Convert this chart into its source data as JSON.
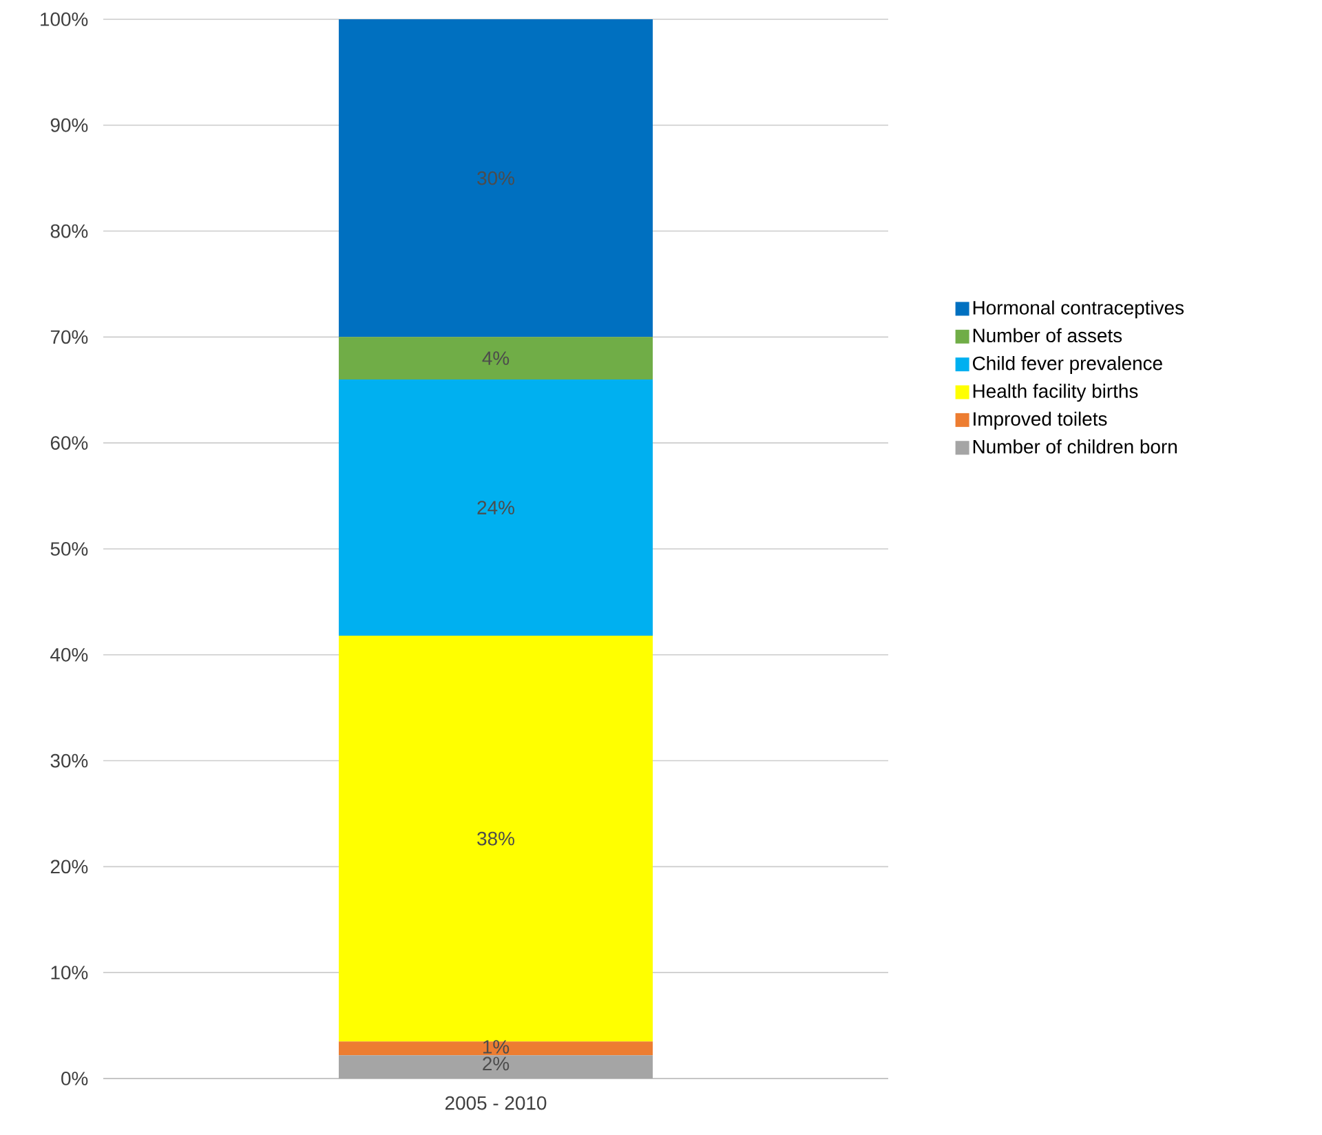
{
  "chart_data": {
    "type": "bar",
    "stacked": true,
    "categories": [
      "2005 - 2010"
    ],
    "series": [
      {
        "name": "Number of children born",
        "color": "#a5a5a5",
        "values": [
          2.2
        ],
        "value_labels": [
          "2%"
        ]
      },
      {
        "name": "Improved toilets",
        "color": "#ed7d31",
        "values": [
          1.3
        ],
        "value_labels": [
          "1%"
        ]
      },
      {
        "name": "Health facility births",
        "color": "#ffff00",
        "values": [
          38.3
        ],
        "value_labels": [
          "38%"
        ]
      },
      {
        "name": "Child fever prevalence",
        "color": "#00b0f0",
        "values": [
          24.2
        ],
        "value_labels": [
          "24%"
        ]
      },
      {
        "name": "Number of assets",
        "color": "#70ad47",
        "values": [
          4.0
        ],
        "value_labels": [
          "4%"
        ]
      },
      {
        "name": "Hormonal contraceptives",
        "color": "#0070c0",
        "values": [
          30.0
        ],
        "value_labels": [
          "30%"
        ]
      }
    ],
    "ylim": [
      0,
      100
    ],
    "yticks": [
      {
        "value": 0,
        "label": "0%"
      },
      {
        "value": 10,
        "label": "10%"
      },
      {
        "value": 20,
        "label": "20%"
      },
      {
        "value": 30,
        "label": "30%"
      },
      {
        "value": 40,
        "label": "40%"
      },
      {
        "value": 50,
        "label": "50%"
      },
      {
        "value": 60,
        "label": "60%"
      },
      {
        "value": 70,
        "label": "70%"
      },
      {
        "value": 80,
        "label": "80%"
      },
      {
        "value": 90,
        "label": "90%"
      },
      {
        "value": 100,
        "label": "100%"
      }
    ],
    "grid": "y",
    "legend": "right"
  }
}
